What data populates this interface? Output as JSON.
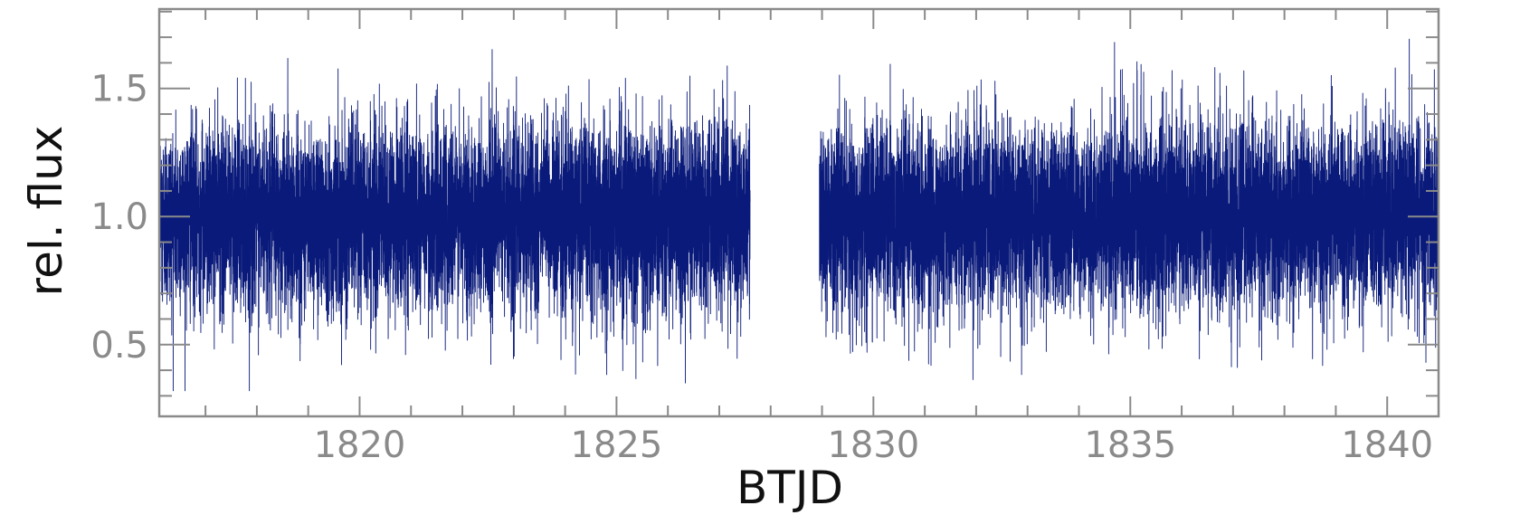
{
  "chart_data": {
    "type": "line",
    "title": "",
    "xlabel": "BTJD",
    "ylabel": "rel. flux",
    "xlim": [
      1816.1,
      1841.0
    ],
    "ylim": [
      0.22,
      1.81
    ],
    "x_ticks": [
      1820,
      1825,
      1830,
      1835,
      1840
    ],
    "x_tick_labels": [
      "1820",
      "1825",
      "1830",
      "1835",
      "1840"
    ],
    "x_minor_step": 1,
    "y_ticks": [
      0.5,
      1.0,
      1.5
    ],
    "y_tick_labels": [
      "0.5",
      "1.0",
      "1.5"
    ],
    "y_minor_step": 0.1,
    "grid": false,
    "legend": "none",
    "line_color": "#0a1a7a",
    "axis_color": "#8a8a8a",
    "series": [
      {
        "segments": [
          {
            "x_start": 1816.1,
            "x_end": 1827.6,
            "cadence_days": 0.0014,
            "median": 1.0,
            "scatter_sigma": 0.18,
            "min": 0.32,
            "max": 1.73
          },
          {
            "x_start": 1828.95,
            "x_end": 1841.0,
            "cadence_days": 0.0014,
            "median": 1.0,
            "scatter_sigma": 0.18,
            "min": 0.3,
            "max": 1.74
          }
        ]
      }
    ]
  }
}
